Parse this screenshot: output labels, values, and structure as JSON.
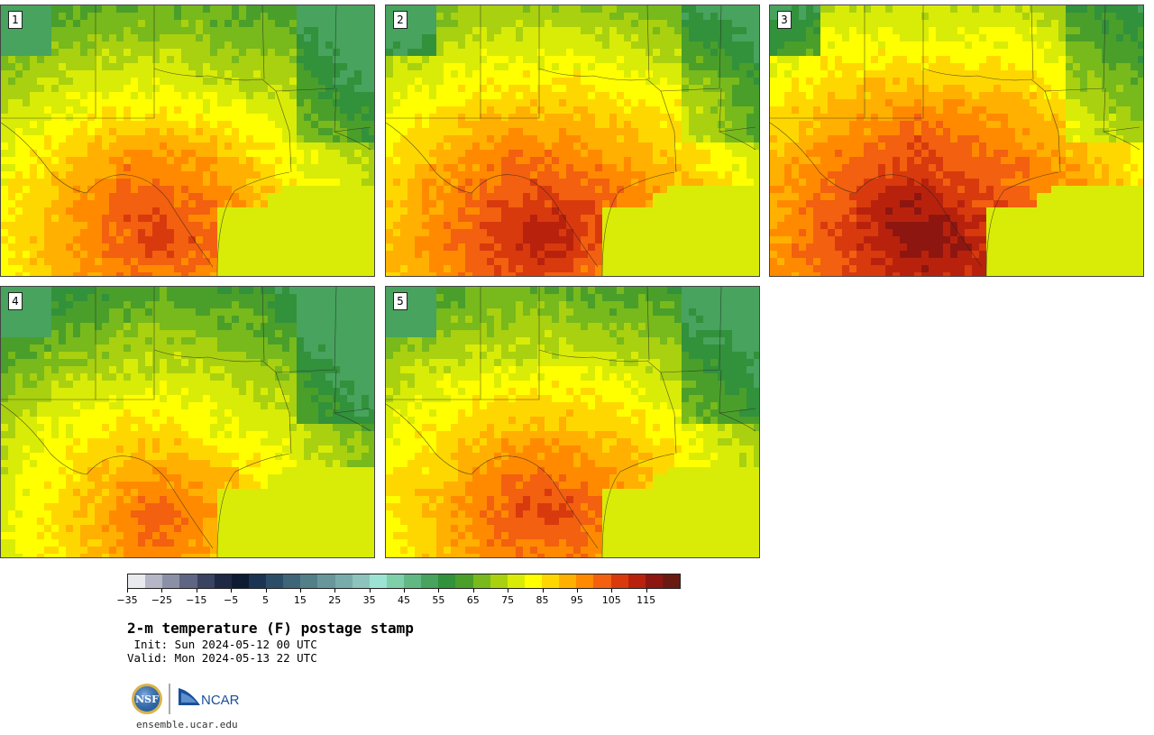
{
  "panels": [
    {
      "label": "1",
      "seed": 11,
      "heat": 1.0
    },
    {
      "label": "2",
      "seed": 23,
      "heat": 1.05
    },
    {
      "label": "3",
      "seed": 37,
      "heat": 1.1
    },
    {
      "label": "4",
      "seed": 41,
      "heat": 0.95
    },
    {
      "label": "5",
      "seed": 53,
      "heat": 1.0
    }
  ],
  "colorbar": {
    "variable": "2-m temperature (F)",
    "min": -35,
    "max": 120,
    "step": 5,
    "tick_labels": [
      "−35",
      "−25",
      "−15",
      "−5",
      "5",
      "15",
      "25",
      "35",
      "45",
      "55",
      "65",
      "75",
      "85",
      "95",
      "105",
      "115"
    ],
    "tick_values": [
      -35,
      -25,
      -15,
      -5,
      5,
      15,
      25,
      35,
      45,
      55,
      65,
      75,
      85,
      95,
      105,
      115
    ],
    "colors": [
      "#e8eaee",
      "#b5b7c6",
      "#8c90a6",
      "#5f6683",
      "#3a4362",
      "#1e2945",
      "#0d1b33",
      "#1c3453",
      "#2c4d68",
      "#3e6578",
      "#537f88",
      "#67979a",
      "#78acaa",
      "#8cc3bd",
      "#9de3d3",
      "#7fcfaa",
      "#62b883",
      "#47a35d",
      "#32913b",
      "#4a9f2a",
      "#78b91c",
      "#a9d10f",
      "#d9ec07",
      "#ffff00",
      "#ffd700",
      "#ffb000",
      "#ff8a00",
      "#f26010",
      "#d83a0e",
      "#b8220d",
      "#8e1610",
      "#6b1a12"
    ]
  },
  "title": "2-m temperature (F) postage stamp",
  "init": " Init: Sun 2024-05-12 00 UTC",
  "valid": "Valid: Mon 2024-05-13 22 UTC",
  "logos": {
    "nsf": "NSF",
    "ncar": "NCAR"
  },
  "website": "ensemble.ucar.edu"
}
